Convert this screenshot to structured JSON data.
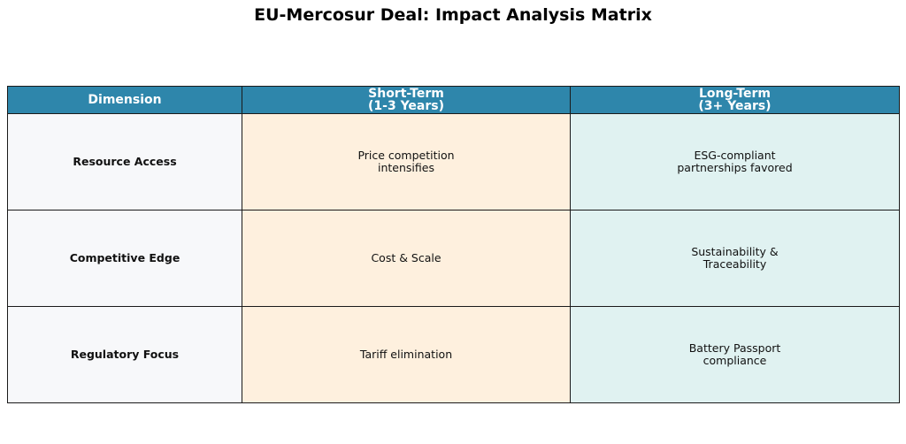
{
  "title": "EU-Mercosur Deal: Impact Analysis Matrix",
  "colors": {
    "header_bg": "#2e86ab",
    "header_text": "#ffffff",
    "dimension_bg": "#f7f8fa",
    "short_term_bg": "#fef0de",
    "long_term_bg": "#e0f2f1",
    "border": "#1a1a1a"
  },
  "chart_data": {
    "type": "table",
    "title": "EU-Mercosur Deal: Impact Analysis Matrix",
    "columns": [
      "Dimension",
      "Short-Term\n(1-3 Years)",
      "Long-Term\n(3+ Years)"
    ],
    "rows": [
      {
        "dimension": "Resource Access",
        "short_term": "Price competition\nintensifies",
        "long_term": "ESG-compliant\npartnerships favored"
      },
      {
        "dimension": "Competitive Edge",
        "short_term": "Cost & Scale",
        "long_term": "Sustainability &\nTraceability"
      },
      {
        "dimension": "Regulatory Focus",
        "short_term": "Tariff elimination",
        "long_term": "Battery Passport\ncompliance"
      }
    ]
  }
}
